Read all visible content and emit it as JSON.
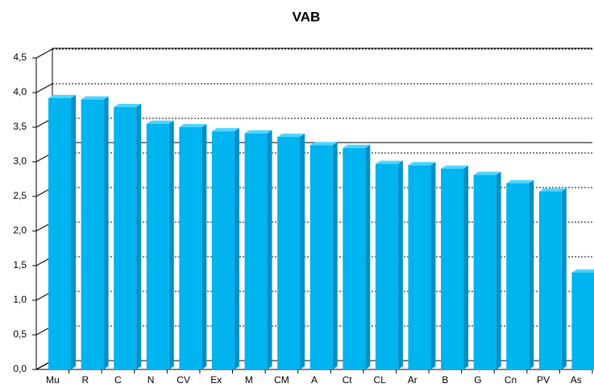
{
  "chart_data": {
    "type": "bar3d",
    "title": "VAB",
    "categories": [
      "Mu",
      "R",
      "C",
      "N",
      "CV",
      "Ex",
      "M",
      "CM",
      "A",
      "Ct",
      "CL",
      "Ar",
      "B",
      "G",
      "Cn",
      "PV",
      "As"
    ],
    "values": [
      3.92,
      3.9,
      3.79,
      3.55,
      3.5,
      3.44,
      3.41,
      3.36,
      3.24,
      3.2,
      2.97,
      2.95,
      2.9,
      2.81,
      2.69,
      2.57,
      1.4
    ],
    "color": "#00b4f0",
    "hline": 3.15,
    "ylim": [
      0,
      4.5
    ],
    "yticks": [
      {
        "value": 0,
        "label": "0,0"
      },
      {
        "value": 0.5,
        "label": "0,5"
      },
      {
        "value": 1,
        "label": "1,0"
      },
      {
        "value": 1.5,
        "label": "1,5"
      },
      {
        "value": 2,
        "label": "2,0"
      },
      {
        "value": 2.5,
        "label": "2,5"
      },
      {
        "value": 3,
        "label": "3,0"
      },
      {
        "value": 3.5,
        "label": "3,5"
      },
      {
        "value": 4,
        "label": "4,0"
      },
      {
        "value": 4.5,
        "label": "4,5"
      }
    ],
    "grid": true
  }
}
